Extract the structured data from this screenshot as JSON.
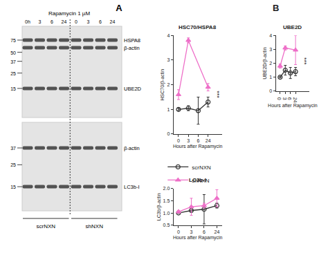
{
  "panel_labels": [
    "A",
    "B"
  ],
  "blot": {
    "treatment": "Rapamycin 1 µM",
    "lanes": [
      "0h",
      "3",
      "6",
      "24",
      "0",
      "3",
      "6",
      "24"
    ],
    "groups": [
      "scrNXN",
      "shNXN"
    ],
    "membranes": [
      {
        "markers": [
          75,
          50,
          37,
          25,
          15
        ],
        "bands": [
          "HSPA8",
          "β-actin",
          "UBE2D"
        ]
      },
      {
        "markers": [
          37,
          25,
          15
        ],
        "bands": [
          "β-actin",
          "LC3b-I"
        ]
      }
    ]
  },
  "chart_data": [
    {
      "type": "line",
      "title": "HSC70/HSPA8",
      "x_label": "Hours after Rapamycin",
      "y_label": "HSC70/β-actin",
      "categories": [
        "0",
        "3",
        "6",
        "24"
      ],
      "series": [
        {
          "name": "scrNXN",
          "color": "#333333",
          "marker": "circle-open",
          "values": [
            1.0,
            1.05,
            0.95,
            1.3
          ],
          "errors": [
            0.05,
            0.1,
            0.55,
            0.2
          ]
        },
        {
          "name": "shNXN",
          "color": "#ee6fc8",
          "marker": "triangle-up",
          "values": [
            1.6,
            3.8,
            null,
            1.9
          ],
          "errors": [
            0.2,
            0.1,
            null,
            0.15
          ]
        }
      ],
      "ylim": [
        0,
        4
      ],
      "yticks": [
        0,
        1,
        2,
        3,
        4
      ],
      "grid": false,
      "legend": "bottom",
      "annotations": [
        {
          "text": "***",
          "category": "24"
        }
      ]
    },
    {
      "type": "line",
      "title": "UBE2D",
      "x_label": "Hours after Rapamycin",
      "y_label": "UBE2D/β-actin",
      "categories": [
        "0",
        "3",
        "6",
        "24"
      ],
      "series": [
        {
          "name": "scrNXN",
          "color": "#333333",
          "marker": "circle-open",
          "values": [
            1.0,
            1.5,
            1.3,
            1.4
          ],
          "errors": [
            0.05,
            0.35,
            0.4,
            0.3
          ]
        },
        {
          "name": "shNXN",
          "color": "#ee6fc8",
          "marker": "triangle-up",
          "values": [
            1.8,
            3.1,
            null,
            2.95
          ],
          "errors": [
            0.15,
            0.15,
            null,
            1.05
          ]
        }
      ],
      "ylim": [
        0,
        4
      ],
      "yticks": [
        0,
        1,
        2,
        3,
        4
      ],
      "grid": false,
      "annotations": [
        {
          "text": "***",
          "category": "24"
        }
      ]
    },
    {
      "type": "line",
      "title": "LC3b-I",
      "x_label": "Hours after Rapamycin",
      "y_label": "LC3b/β-actin",
      "categories": [
        "0",
        "3",
        "6",
        "24"
      ],
      "series": [
        {
          "name": "scrNXN",
          "color": "#333333",
          "marker": "circle-open",
          "values": [
            1.0,
            1.1,
            1.15,
            1.3
          ],
          "errors": [
            0.02,
            0.05,
            0.6,
            0.1
          ]
        },
        {
          "name": "shNXN",
          "color": "#ee6fc8",
          "marker": "triangle-up",
          "values": [
            1.05,
            1.25,
            1.3,
            1.6
          ],
          "errors": [
            0.05,
            0.35,
            0.1,
            0.35
          ]
        }
      ],
      "ylim": [
        0.5,
        2
      ],
      "yticks": [
        {
          "value": 0.5,
          "label": "0.5"
        },
        {
          "value": 1,
          "label": "1.0"
        },
        {
          "value": 1.5,
          "label": "1.5"
        },
        {
          "value": 2,
          "label": "2.0"
        }
      ],
      "grid": false
    }
  ]
}
